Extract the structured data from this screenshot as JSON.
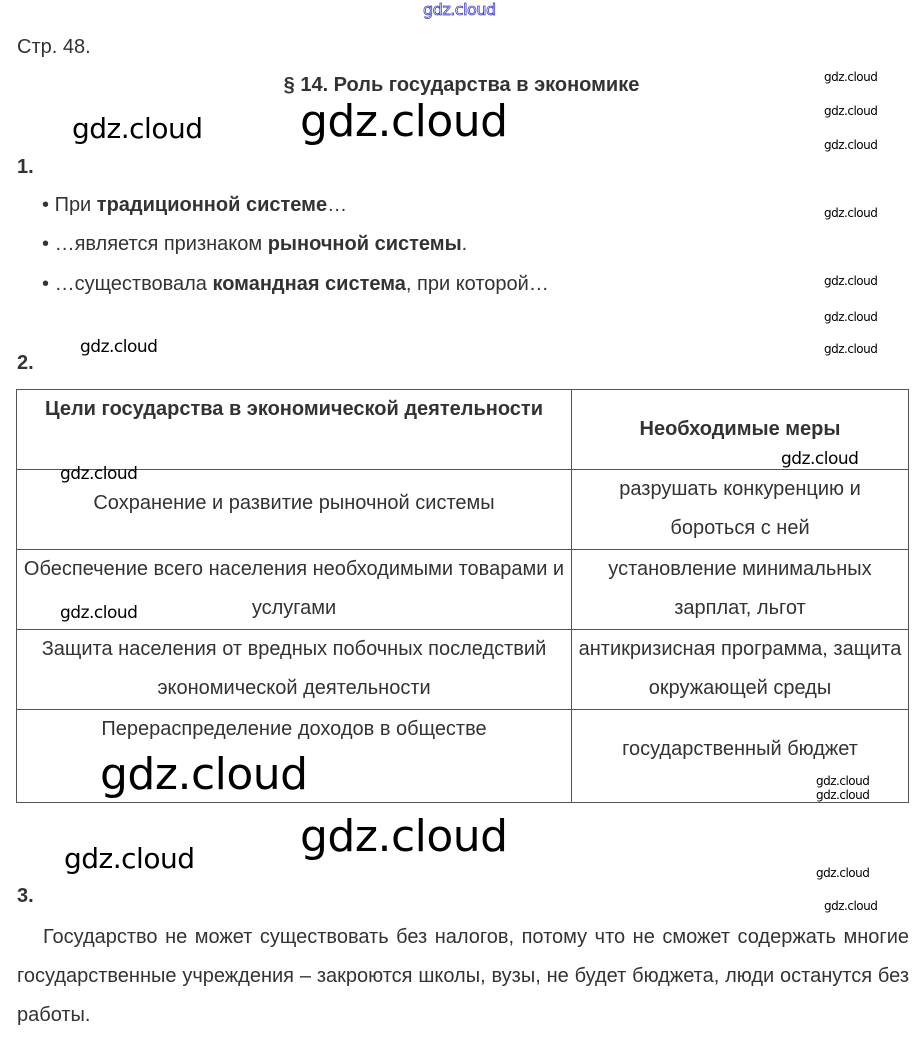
{
  "watermark": "gdz.cloud",
  "page_label": "Стр. 48.",
  "title": "§ 14. Роль государства в экономике",
  "task1": {
    "number": "1.",
    "bullets": [
      {
        "pre": "При ",
        "bold": "традиционной системе",
        "post": "…"
      },
      {
        "pre": "…является признаком ",
        "bold": "рыночной системы",
        "post": "."
      },
      {
        "pre": "…существовала ",
        "bold": "командная система",
        "post": ", при которой…"
      }
    ]
  },
  "task2": {
    "number": "2.",
    "headers": [
      "Цели государства в экономической деятельности",
      "Необходимые меры"
    ],
    "rows": [
      [
        "Сохранение и развитие рыночной системы",
        "разрушать конкуренцию и бороться с ней"
      ],
      [
        "Обеспечение всего населения необходимыми товарами и услугами",
        "установление минимальных зарплат, льгот"
      ],
      [
        "Защита населения от вредных побочных последствий экономической деятельности",
        "антикризисная программа, защита окружающей среды"
      ],
      [
        "Перераспределение доходов в обществе",
        "государственный бюджет"
      ]
    ]
  },
  "task3": {
    "number": "3.",
    "text": "Государство не может существовать без налогов, потому что не сможет содержать многие государственные учреждения – закроются школы, вузы, не будет бюджета, люди останутся без работы."
  }
}
